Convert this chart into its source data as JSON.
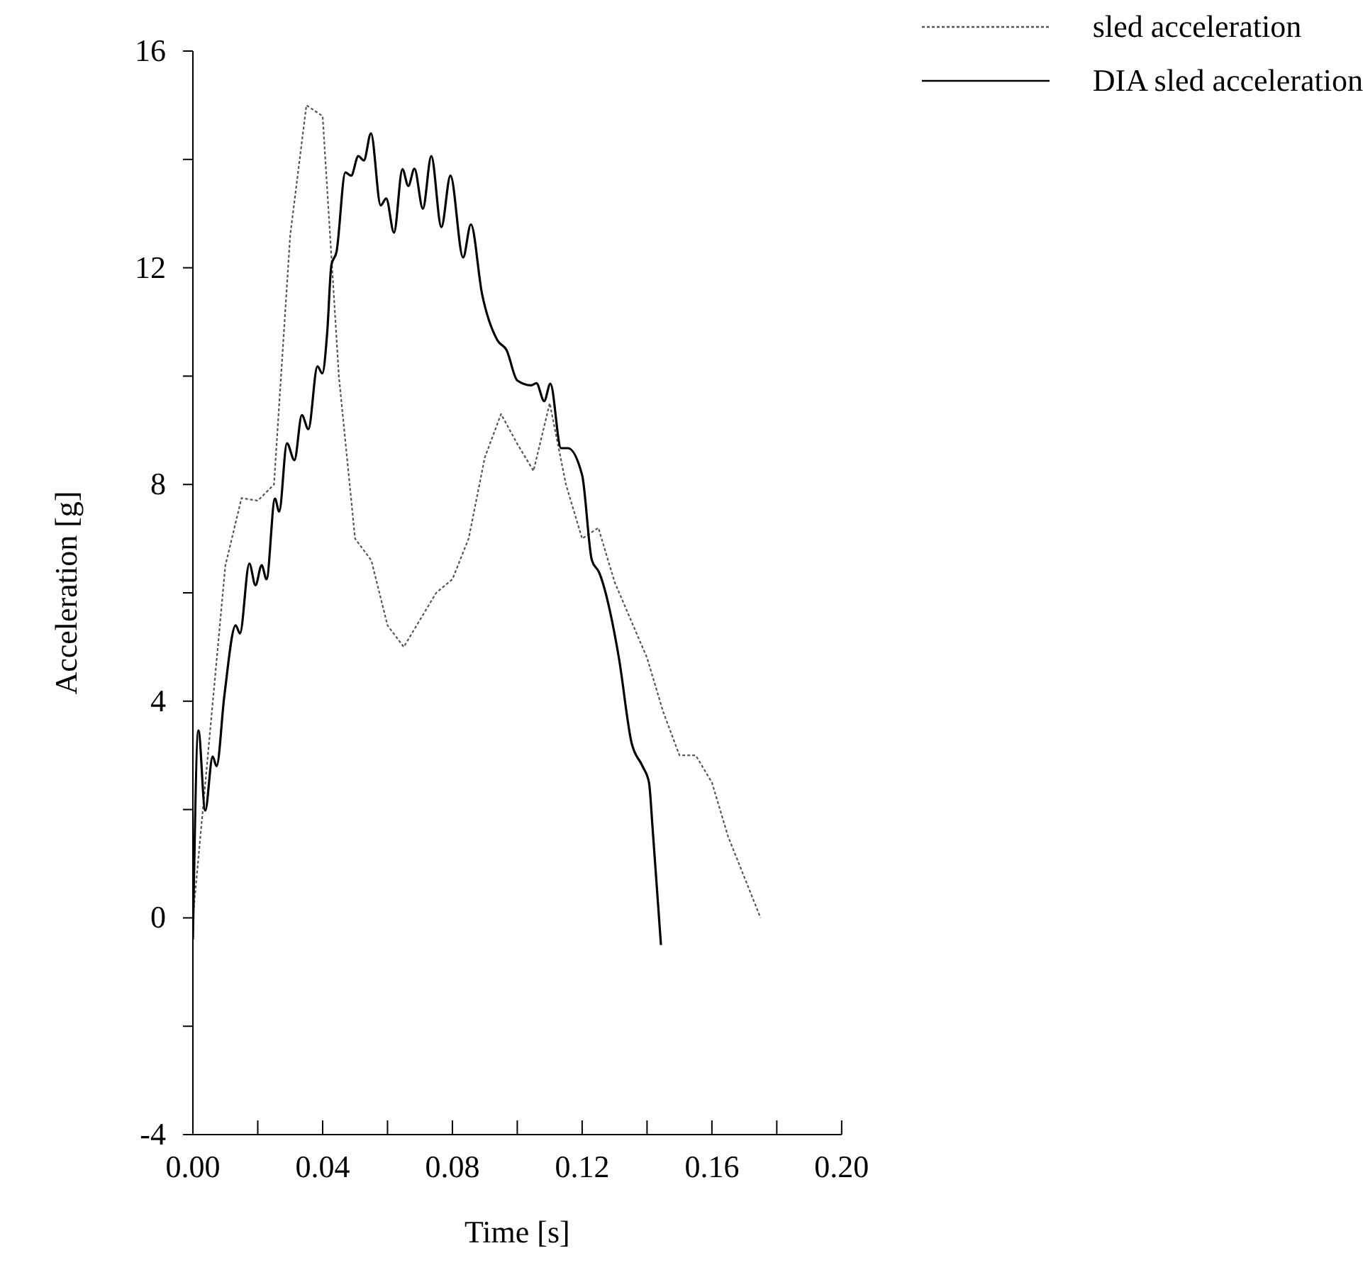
{
  "chart_data": {
    "type": "line",
    "xlabel": "Time [s]",
    "ylabel": "Acceleration [g]",
    "xlim": [
      0,
      0.2
    ],
    "ylim": [
      -4,
      16
    ],
    "xticks": [
      {
        "value": 0,
        "label": "0.00"
      },
      {
        "value": 0.02,
        "label": null
      },
      {
        "value": 0.04,
        "label": "0.04"
      },
      {
        "value": 0.06,
        "label": null
      },
      {
        "value": 0.08,
        "label": "0.08"
      },
      {
        "value": 0.1,
        "label": null
      },
      {
        "value": 0.12,
        "label": "0.12"
      },
      {
        "value": 0.14,
        "label": null
      },
      {
        "value": 0.16,
        "label": "0.16"
      },
      {
        "value": 0.18,
        "label": null
      },
      {
        "value": 0.2,
        "label": "0.20"
      }
    ],
    "yticks": [
      -4,
      {
        "value": -2,
        "label": null
      },
      0,
      {
        "value": 2,
        "label": null
      },
      4,
      {
        "value": 6,
        "label": null
      },
      8,
      {
        "value": 10,
        "label": null
      },
      12,
      {
        "value": 14,
        "label": null
      },
      16
    ],
    "grid": false,
    "legend": "top right",
    "marker": "none",
    "series": [
      {
        "name": "sled acceleration",
        "color": "#555555",
        "line_style": "dotted",
        "x": [
          0,
          0.01,
          0.015,
          0.02,
          0.025,
          0.03,
          0.035,
          0.04,
          0.045,
          0.05,
          0.055,
          0.06,
          0.065,
          0.075,
          0.08,
          0.085,
          0.09,
          0.095,
          0.1,
          0.105,
          0.11,
          0.115,
          0.12,
          0.125,
          0.13,
          0.14,
          0.145,
          0.15,
          0.155,
          0.16,
          0.165,
          0.175
        ],
        "values": [
          0,
          6.5,
          7.75,
          7.7,
          8.0,
          12.6,
          15.0,
          14.8,
          10.0,
          7.0,
          6.6,
          5.4,
          5.0,
          6.0,
          6.25,
          7.0,
          8.5,
          9.3,
          8.75,
          8.25,
          9.5,
          8.0,
          7.0,
          7.2,
          6.2,
          4.8,
          3.8,
          3.0,
          3.0,
          2.5,
          1.5,
          0
        ]
      },
      {
        "name": "DIA sled acceleration",
        "color": "#000000",
        "line_style": "solid",
        "x": [
          0,
          0.0017,
          0.0038,
          0.0061,
          0.0073,
          0.0097,
          0.0132,
          0.0145,
          0.0174,
          0.0193,
          0.0212,
          0.0227,
          0.0253,
          0.0266,
          0.029,
          0.0313,
          0.0336,
          0.0356,
          0.0384,
          0.0399,
          0.0414,
          0.0427,
          0.0443,
          0.047,
          0.0488,
          0.051,
          0.0527,
          0.0549,
          0.0579,
          0.0596,
          0.062,
          0.0646,
          0.0664,
          0.0683,
          0.0709,
          0.0735,
          0.0766,
          0.0794,
          0.0833,
          0.0857,
          0.0891,
          0.0939,
          0.0967,
          0.1,
          0.1043,
          0.1059,
          0.1083,
          0.1102,
          0.1135,
          0.1156,
          0.12,
          0.123,
          0.1252,
          0.1313,
          0.1352,
          0.1386,
          0.1406,
          0.1417,
          0.1443
        ],
        "values": [
          -0.4,
          3.46,
          1.98,
          2.98,
          2.8,
          4.1,
          5.4,
          5.25,
          6.54,
          6.14,
          6.51,
          6.25,
          7.74,
          7.5,
          8.76,
          8.45,
          9.28,
          9.02,
          10.18,
          10.05,
          10.8,
          12.05,
          12.3,
          13.76,
          13.7,
          14.06,
          13.98,
          14.48,
          13.15,
          13.28,
          12.65,
          13.82,
          13.51,
          13.83,
          13.09,
          14.06,
          12.75,
          13.7,
          12.19,
          12.8,
          11.53,
          10.66,
          10.48,
          9.92,
          9.83,
          9.87,
          9.54,
          9.86,
          8.67,
          8.67,
          8.17,
          6.6,
          6.38,
          4.81,
          3.24,
          2.8,
          2.5,
          1.67,
          -0.5
        ]
      }
    ]
  }
}
